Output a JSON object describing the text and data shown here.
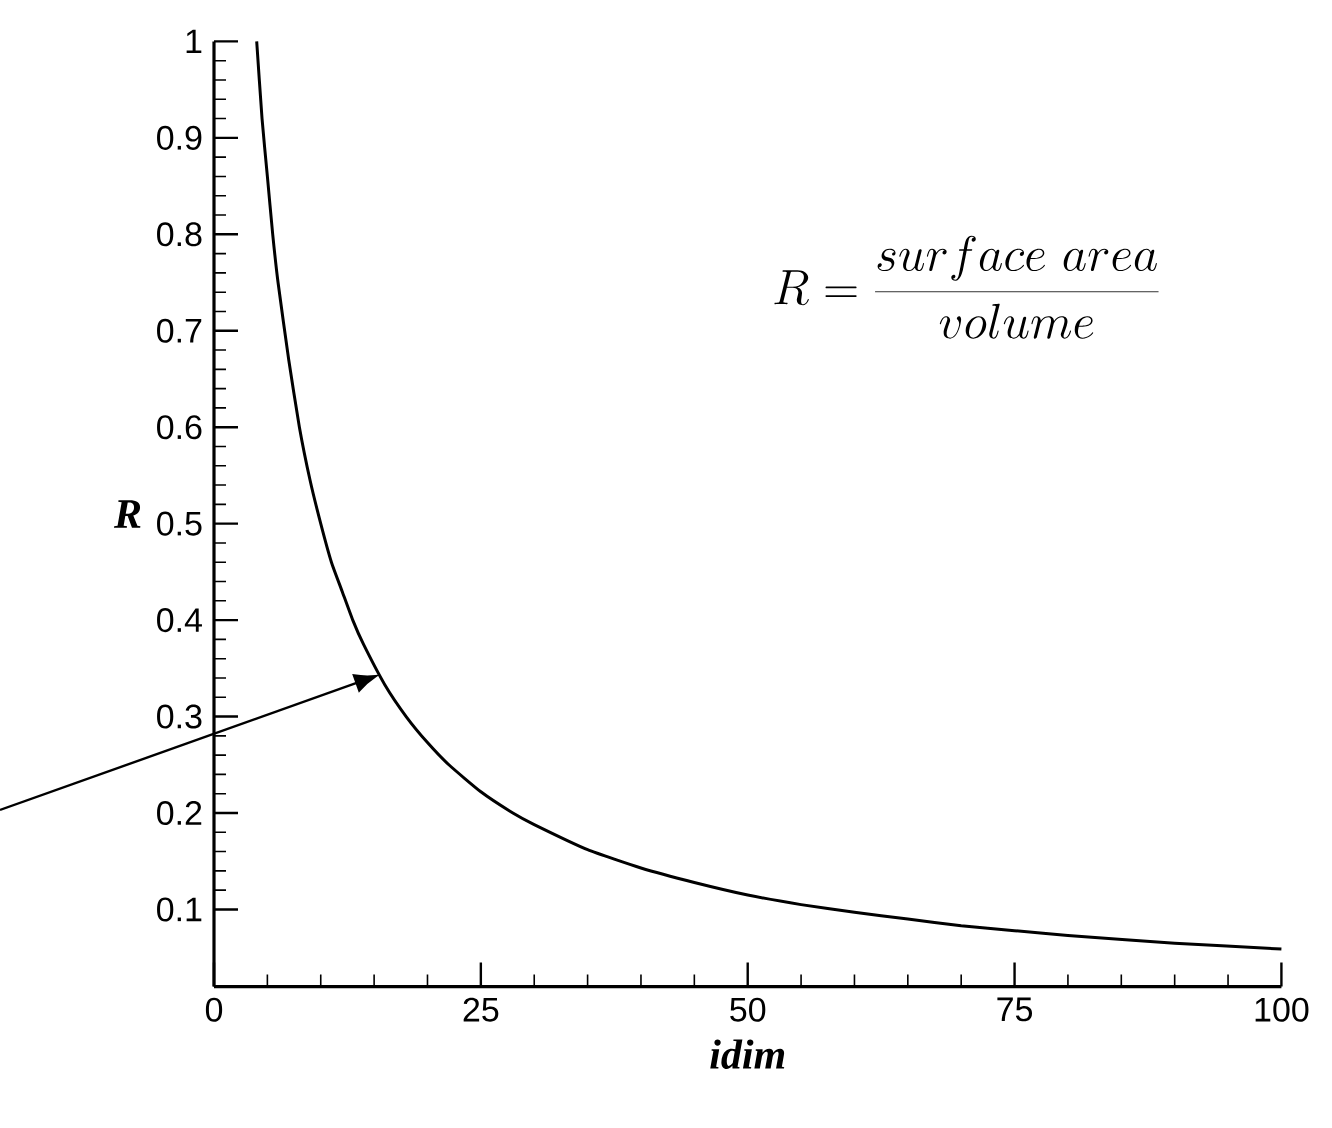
{
  "chart_data": {
    "type": "line",
    "xlabel": "idim",
    "ylabel": "R",
    "annotations": [
      "R=\\frac{surface\\ area}{volume}"
    ],
    "x": [
      4,
      4.5,
      5,
      5.5,
      6,
      7,
      8,
      9,
      10,
      11,
      12,
      13,
      14,
      16,
      18,
      20,
      22,
      25,
      28,
      30,
      35,
      40,
      45,
      50,
      55,
      60,
      65,
      70,
      75,
      80,
      90,
      100
    ],
    "series": [
      {
        "color": "#000000",
        "values": [
          1,
          0.92,
          0.86,
          0.8,
          0.75,
          0.67,
          0.6,
          0.545,
          0.5,
          0.46,
          0.43,
          0.4,
          0.375,
          0.333,
          0.3,
          0.273,
          0.25,
          0.222,
          0.2,
          0.188,
          0.162,
          0.143,
          0.128,
          0.115,
          0.105,
          0.097,
          0.09,
          0.083,
          0.078,
          0.073,
          0.065,
          0.059
        ]
      }
    ],
    "xlim": [
      0,
      100
    ],
    "ylim": [
      0.02,
      1
    ],
    "xticks": [
      0,
      25,
      50,
      75,
      100
    ],
    "yticks": [
      0.1,
      0.2,
      0.3,
      0.4,
      0.5,
      0.6,
      0.7,
      0.8,
      0.9,
      1
    ],
    "grid": false,
    "marker": "none",
    "line_style": "solid"
  }
}
